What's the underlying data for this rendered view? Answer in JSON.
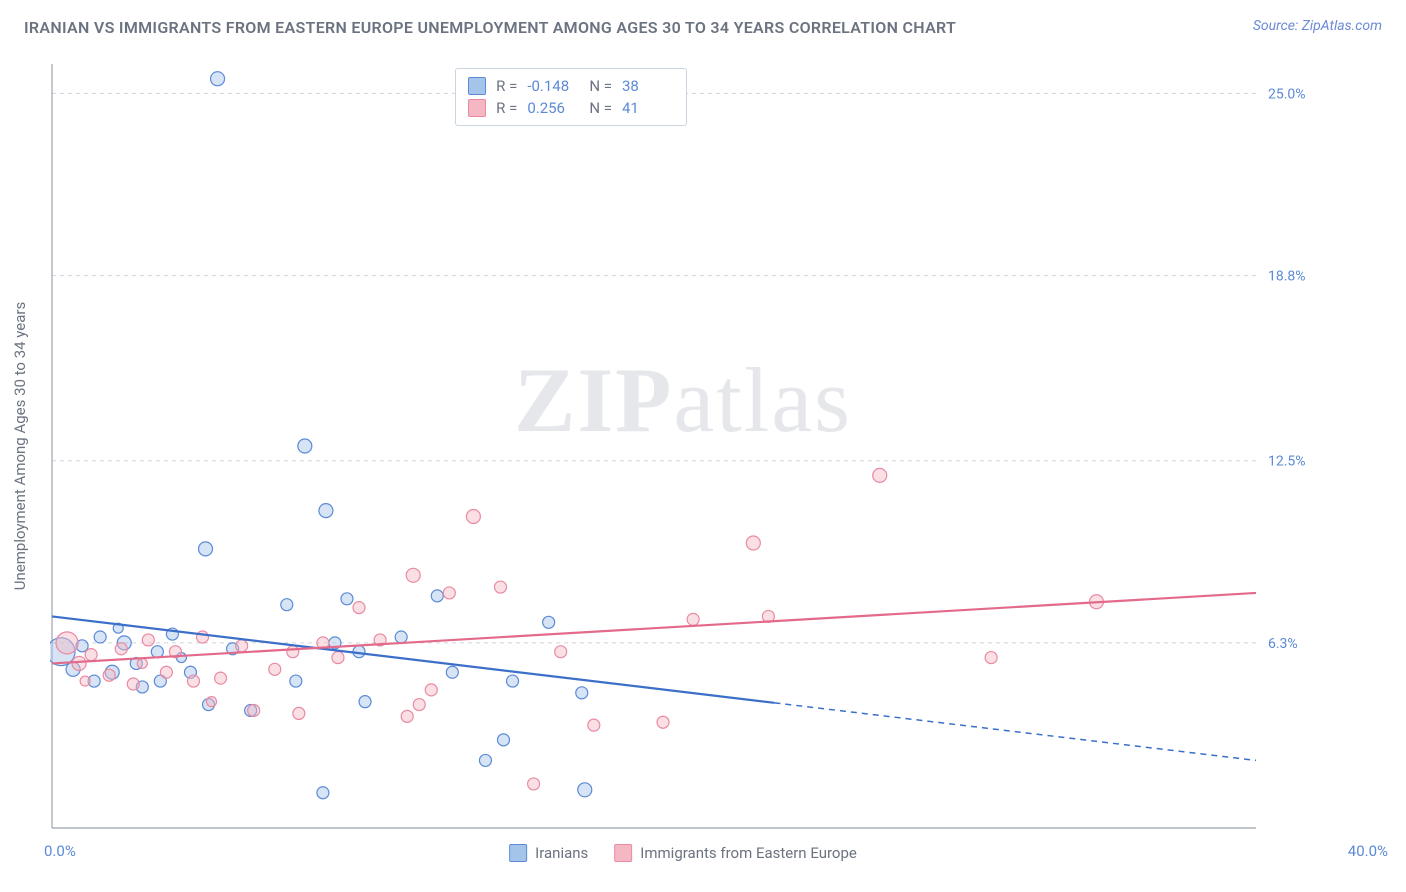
{
  "title": "IRANIAN VS IMMIGRANTS FROM EASTERN EUROPE UNEMPLOYMENT AMONG AGES 30 TO 34 YEARS CORRELATION CHART",
  "source_label": "Source: ZipAtlas.com",
  "ylabel": "Unemployment Among Ages 30 to 34 years",
  "watermark_prefix": "ZIP",
  "watermark_suffix": "atlas",
  "chart": {
    "type": "scatter",
    "xlim": [
      0,
      40
    ],
    "ylim": [
      0,
      26
    ],
    "yticks": [
      {
        "v": 6.3,
        "label": "6.3%"
      },
      {
        "v": 12.5,
        "label": "12.5%"
      },
      {
        "v": 18.8,
        "label": "18.8%"
      },
      {
        "v": 25.0,
        "label": "25.0%"
      }
    ],
    "x_start_label": "0.0%",
    "x_end_label": "40.0%",
    "background_color": "#ffffff",
    "grid_color": "#d1d5db",
    "axis_color": "#9ca3af",
    "tick_label_color": "#5b8ad6",
    "series": [
      {
        "name": "Iranians",
        "fill": "#a5c4ea",
        "stroke": "#5b8ad6",
        "fill_opacity": 0.45,
        "line_color": "#3b6fc9",
        "line_width": 2.2,
        "r_value": "-0.148",
        "n_value": "38",
        "trend": {
          "x1": 0,
          "y1": 7.2,
          "x2": 40,
          "y2": 2.3,
          "solid_until_x": 24
        },
        "points": [
          {
            "x": 0.3,
            "y": 6.0,
            "r": 14
          },
          {
            "x": 0.7,
            "y": 5.4,
            "r": 7
          },
          {
            "x": 1.0,
            "y": 6.2,
            "r": 6
          },
          {
            "x": 1.4,
            "y": 5.0,
            "r": 6
          },
          {
            "x": 1.6,
            "y": 6.5,
            "r": 6
          },
          {
            "x": 2.0,
            "y": 5.3,
            "r": 7
          },
          {
            "x": 2.4,
            "y": 6.3,
            "r": 7
          },
          {
            "x": 2.8,
            "y": 5.6,
            "r": 6
          },
          {
            "x": 3.0,
            "y": 4.8,
            "r": 6
          },
          {
            "x": 3.5,
            "y": 6.0,
            "r": 6
          },
          {
            "x": 3.6,
            "y": 5.0,
            "r": 6
          },
          {
            "x": 4.0,
            "y": 6.6,
            "r": 6
          },
          {
            "x": 4.6,
            "y": 5.3,
            "r": 6
          },
          {
            "x": 5.1,
            "y": 9.5,
            "r": 7
          },
          {
            "x": 5.5,
            "y": 25.5,
            "r": 7
          },
          {
            "x": 5.2,
            "y": 4.2,
            "r": 6
          },
          {
            "x": 6.0,
            "y": 6.1,
            "r": 6
          },
          {
            "x": 6.6,
            "y": 4.0,
            "r": 6
          },
          {
            "x": 7.8,
            "y": 7.6,
            "r": 6
          },
          {
            "x": 8.1,
            "y": 5.0,
            "r": 6
          },
          {
            "x": 8.4,
            "y": 13.0,
            "r": 7
          },
          {
            "x": 9.0,
            "y": 1.2,
            "r": 6
          },
          {
            "x": 9.1,
            "y": 10.8,
            "r": 7
          },
          {
            "x": 9.4,
            "y": 6.3,
            "r": 6
          },
          {
            "x": 9.8,
            "y": 7.8,
            "r": 6
          },
          {
            "x": 10.2,
            "y": 6.0,
            "r": 6
          },
          {
            "x": 10.4,
            "y": 4.3,
            "r": 6
          },
          {
            "x": 11.6,
            "y": 6.5,
            "r": 6
          },
          {
            "x": 12.8,
            "y": 7.9,
            "r": 6
          },
          {
            "x": 13.3,
            "y": 5.3,
            "r": 6
          },
          {
            "x": 14.4,
            "y": 2.3,
            "r": 6
          },
          {
            "x": 15.0,
            "y": 3.0,
            "r": 6
          },
          {
            "x": 15.3,
            "y": 5.0,
            "r": 6
          },
          {
            "x": 17.6,
            "y": 4.6,
            "r": 6
          },
          {
            "x": 17.7,
            "y": 1.3,
            "r": 7
          },
          {
            "x": 16.5,
            "y": 7.0,
            "r": 6
          },
          {
            "x": 4.3,
            "y": 5.8,
            "r": 5
          },
          {
            "x": 2.2,
            "y": 6.8,
            "r": 5
          }
        ]
      },
      {
        "name": "Immigrants from Eastern Europe",
        "fill": "#f5b7c4",
        "stroke": "#e98aa2",
        "fill_opacity": 0.45,
        "line_color": "#e36a8a",
        "line_width": 2.2,
        "r_value": "0.256",
        "n_value": "41",
        "trend": {
          "x1": 0,
          "y1": 5.6,
          "x2": 40,
          "y2": 8.0,
          "solid_until_x": 40
        },
        "points": [
          {
            "x": 0.5,
            "y": 6.3,
            "r": 11
          },
          {
            "x": 0.9,
            "y": 5.6,
            "r": 7
          },
          {
            "x": 1.3,
            "y": 5.9,
            "r": 6
          },
          {
            "x": 1.9,
            "y": 5.2,
            "r": 6
          },
          {
            "x": 2.3,
            "y": 6.1,
            "r": 6
          },
          {
            "x": 2.7,
            "y": 4.9,
            "r": 6
          },
          {
            "x": 3.2,
            "y": 6.4,
            "r": 6
          },
          {
            "x": 3.8,
            "y": 5.3,
            "r": 6
          },
          {
            "x": 4.1,
            "y": 6.0,
            "r": 6
          },
          {
            "x": 4.7,
            "y": 5.0,
            "r": 6
          },
          {
            "x": 5.0,
            "y": 6.5,
            "r": 6
          },
          {
            "x": 5.6,
            "y": 5.1,
            "r": 6
          },
          {
            "x": 6.3,
            "y": 6.2,
            "r": 6
          },
          {
            "x": 6.7,
            "y": 4.0,
            "r": 6
          },
          {
            "x": 7.4,
            "y": 5.4,
            "r": 6
          },
          {
            "x": 8.0,
            "y": 6.0,
            "r": 6
          },
          {
            "x": 8.2,
            "y": 3.9,
            "r": 6
          },
          {
            "x": 9.0,
            "y": 6.3,
            "r": 6
          },
          {
            "x": 9.5,
            "y": 5.8,
            "r": 6
          },
          {
            "x": 10.2,
            "y": 7.5,
            "r": 6
          },
          {
            "x": 10.9,
            "y": 6.4,
            "r": 6
          },
          {
            "x": 11.8,
            "y": 3.8,
            "r": 6
          },
          {
            "x": 12.0,
            "y": 8.6,
            "r": 7
          },
          {
            "x": 12.2,
            "y": 4.2,
            "r": 6
          },
          {
            "x": 12.6,
            "y": 4.7,
            "r": 6
          },
          {
            "x": 13.2,
            "y": 8.0,
            "r": 6
          },
          {
            "x": 14.0,
            "y": 10.6,
            "r": 7
          },
          {
            "x": 14.9,
            "y": 8.2,
            "r": 6
          },
          {
            "x": 16.0,
            "y": 1.5,
            "r": 6
          },
          {
            "x": 16.9,
            "y": 6.0,
            "r": 6
          },
          {
            "x": 18.0,
            "y": 3.5,
            "r": 6
          },
          {
            "x": 20.3,
            "y": 3.6,
            "r": 6
          },
          {
            "x": 21.3,
            "y": 7.1,
            "r": 6
          },
          {
            "x": 23.3,
            "y": 9.7,
            "r": 7
          },
          {
            "x": 23.8,
            "y": 7.2,
            "r": 6
          },
          {
            "x": 27.5,
            "y": 12.0,
            "r": 7
          },
          {
            "x": 31.2,
            "y": 5.8,
            "r": 6
          },
          {
            "x": 34.7,
            "y": 7.7,
            "r": 7
          },
          {
            "x": 5.3,
            "y": 4.3,
            "r": 5
          },
          {
            "x": 3.0,
            "y": 5.6,
            "r": 5
          },
          {
            "x": 1.1,
            "y": 5.0,
            "r": 5
          }
        ]
      }
    ],
    "bottom_legend": [
      {
        "swatch_fill": "#a5c4ea",
        "swatch_stroke": "#5b8ad6",
        "label": "Iranians"
      },
      {
        "swatch_fill": "#f5b7c4",
        "swatch_stroke": "#e98aa2",
        "label": "Immigrants from Eastern Europe"
      }
    ],
    "stat_legend": {
      "left_pct": 32,
      "rows": [
        {
          "swatch_fill": "#a5c4ea",
          "swatch_stroke": "#5b8ad6",
          "r": "-0.148",
          "n": "38"
        },
        {
          "swatch_fill": "#f5b7c4",
          "swatch_stroke": "#e98aa2",
          "r": "0.256",
          "n": "41"
        }
      ]
    }
  }
}
